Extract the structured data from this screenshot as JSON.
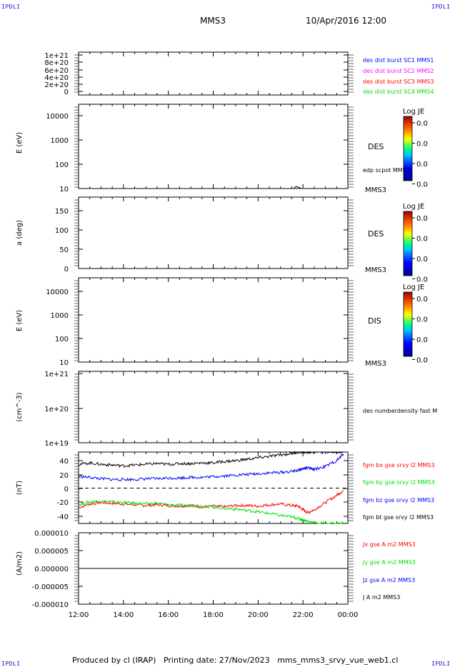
{
  "corners": {
    "tl": "IPDLI",
    "tr": "IPDLI",
    "bl": "IPDLI",
    "br": "IPDLI"
  },
  "header": {
    "title": "MMS3",
    "date": "10/Apr/2016 12:00"
  },
  "footer": {
    "produced": "Produced by cl (IRAP)",
    "printing": "Printing date: 27/Nov/2023",
    "file": "mms_mms3_srvy_vue_web1.cl"
  },
  "time_axis": {
    "ticks": [
      "12:00",
      "14:00",
      "16:00",
      "18:00",
      "20:00",
      "22:00",
      "00:00"
    ]
  },
  "colors": {
    "black": "#000000",
    "blue": "#0000ff",
    "magenta": "#ff00ff",
    "red": "#ff0000",
    "green": "#00e000"
  },
  "chart_data": [
    {
      "type": "line",
      "panel": "dist",
      "yticks": [
        "1e+21",
        "8e+20",
        "6e+20",
        "4e+20",
        "2e+20",
        "0"
      ],
      "ylim": [
        0,
        1e+21
      ],
      "reference_line": 0,
      "legend": [
        {
          "text": "des dist burst SC1 MMS1",
          "color": "#0000ff"
        },
        {
          "text": "des dist burst SC2 MMS2",
          "color": "#ff00ff"
        },
        {
          "text": "des dist burst SC3 MMS3",
          "color": "#ff0000"
        },
        {
          "text": "des dist burst SC4 MMS4",
          "color": "#00e000"
        }
      ]
    },
    {
      "type": "heatmap",
      "panel": "des-energy",
      "ylabel": "E (eV)",
      "yscale": "log",
      "yticks": [
        "10000",
        "1000",
        "100",
        "10"
      ],
      "ylim": [
        10,
        13000
      ],
      "side_label": "DES",
      "mms_label": "MMS3",
      "overlay_label": "edp scpot MMS3",
      "colorbar": {
        "title": "Log JE",
        "ticks": [
          "0.0",
          "0.0",
          "0.0",
          "0.0"
        ]
      },
      "scpot_trace": {
        "x": [
          21.6,
          21.7,
          21.8,
          21.9
        ],
        "y": [
          10.5,
          12,
          11,
          10.5
        ]
      }
    },
    {
      "type": "heatmap",
      "panel": "des-pitch",
      "ylabel": "a (deg)",
      "yticks": [
        "150",
        "100",
        "50",
        "0"
      ],
      "ylim": [
        0,
        180
      ],
      "side_label": "DES",
      "mms_label": "MMS3",
      "colorbar": {
        "title": "Log JE",
        "ticks": [
          "0.0",
          "0.0",
          "0.0",
          "0.0"
        ]
      }
    },
    {
      "type": "heatmap",
      "panel": "dis-energy",
      "ylabel": "E (eV)",
      "yscale": "log",
      "yticks": [
        "10000",
        "1000",
        "100",
        "10"
      ],
      "ylim": [
        10,
        13000
      ],
      "side_label": "DIS",
      "mms_label": "MMS3",
      "colorbar": {
        "title": "Log JE",
        "ticks": [
          "0.0",
          "0.0",
          "0.0",
          "0.0"
        ]
      }
    },
    {
      "type": "line",
      "panel": "density",
      "ylabel": "(cm^-3)",
      "yscale": "log",
      "yticks": [
        "1e+21",
        "1e+20",
        "1e+19"
      ],
      "ylim": [
        1e+19,
        1e+21
      ],
      "legend": [
        {
          "text": "des numberdensity fast M",
          "color": "#000000"
        }
      ]
    },
    {
      "type": "line",
      "panel": "fgm",
      "ylabel": "(nT)",
      "yticks": [
        "40",
        "20",
        "0",
        "-20",
        "-40"
      ],
      "ylim": [
        -49,
        50
      ],
      "reference_line": 0,
      "legend": [
        {
          "text": "fgm bx gse srvy l2 MMS3",
          "color": "#ff0000"
        },
        {
          "text": "fgm by gse srvy l2 MMS3",
          "color": "#00e000"
        },
        {
          "text": "fgm bz gse srvy l2 MMS3",
          "color": "#0000ff"
        },
        {
          "text": "fgm bt gse srvy l2 MMS3",
          "color": "#000000"
        }
      ],
      "x": [
        12.0,
        12.5,
        13.0,
        13.5,
        14.0,
        14.5,
        15.0,
        15.5,
        16.0,
        16.5,
        17.0,
        17.5,
        18.0,
        18.5,
        19.0,
        19.5,
        20.0,
        20.5,
        21.0,
        21.5,
        21.8,
        22.0,
        22.2,
        22.5,
        23.0,
        23.5,
        23.8
      ],
      "series": [
        {
          "name": "fgm bx gse srvy l2 MMS3",
          "color": "#ff0000",
          "values": [
            -27,
            -22,
            -20,
            -21,
            -22,
            -23,
            -24,
            -23,
            -24,
            -25,
            -24,
            -26,
            -25,
            -26,
            -24,
            -24,
            -25,
            -23,
            -22,
            -24,
            -25,
            -30,
            -34,
            -30,
            -20,
            -10,
            -3
          ]
        },
        {
          "name": "fgm by gse srvy l2 MMS3",
          "color": "#00e000",
          "values": [
            -23,
            -19,
            -18,
            -19,
            -20,
            -21,
            -22,
            -21,
            -23,
            -24,
            -24,
            -25,
            -26,
            -28,
            -29,
            -31,
            -33,
            -35,
            -38,
            -40,
            -42,
            -44,
            -46,
            -48,
            -49,
            -49,
            -49
          ]
        },
        {
          "name": "fgm bz gse srvy l2 MMS3",
          "color": "#0000ff",
          "values": [
            16,
            15,
            13,
            12,
            12,
            12,
            13,
            13,
            14,
            14,
            15,
            15,
            16,
            17,
            18,
            19,
            20,
            21,
            22,
            23,
            25,
            27,
            28,
            26,
            30,
            38,
            47
          ]
        },
        {
          "name": "fgm bt gse srvy l2 MMS3",
          "color": "#000000",
          "values": [
            33,
            35,
            33,
            32,
            31,
            32,
            33,
            34,
            33,
            34,
            34,
            35,
            35,
            37,
            38,
            40,
            42,
            44,
            46,
            48,
            50,
            50,
            50,
            50,
            50,
            50,
            50
          ]
        }
      ]
    },
    {
      "type": "line",
      "panel": "current",
      "ylabel": "(A/m2)",
      "yticks": [
        "0.000010",
        "0.000005",
        "0.000000",
        "-0.000005",
        "-0.000010"
      ],
      "ylim": [
        -1e-05,
        1e-05
      ],
      "legend": [
        {
          "text": "Jx gse A m2 MMS3",
          "color": "#ff0000"
        },
        {
          "text": "Jy gse A m2 MMS3",
          "color": "#00e000"
        },
        {
          "text": "Jz gse A m2 MMS3",
          "color": "#0000ff"
        },
        {
          "text": "J A m2 MMS3",
          "color": "#000000"
        }
      ],
      "x": [
        12.0,
        24.0
      ],
      "series": [
        {
          "name": "J A m2 MMS3",
          "color": "#000000",
          "values": [
            0,
            0
          ]
        }
      ]
    }
  ]
}
